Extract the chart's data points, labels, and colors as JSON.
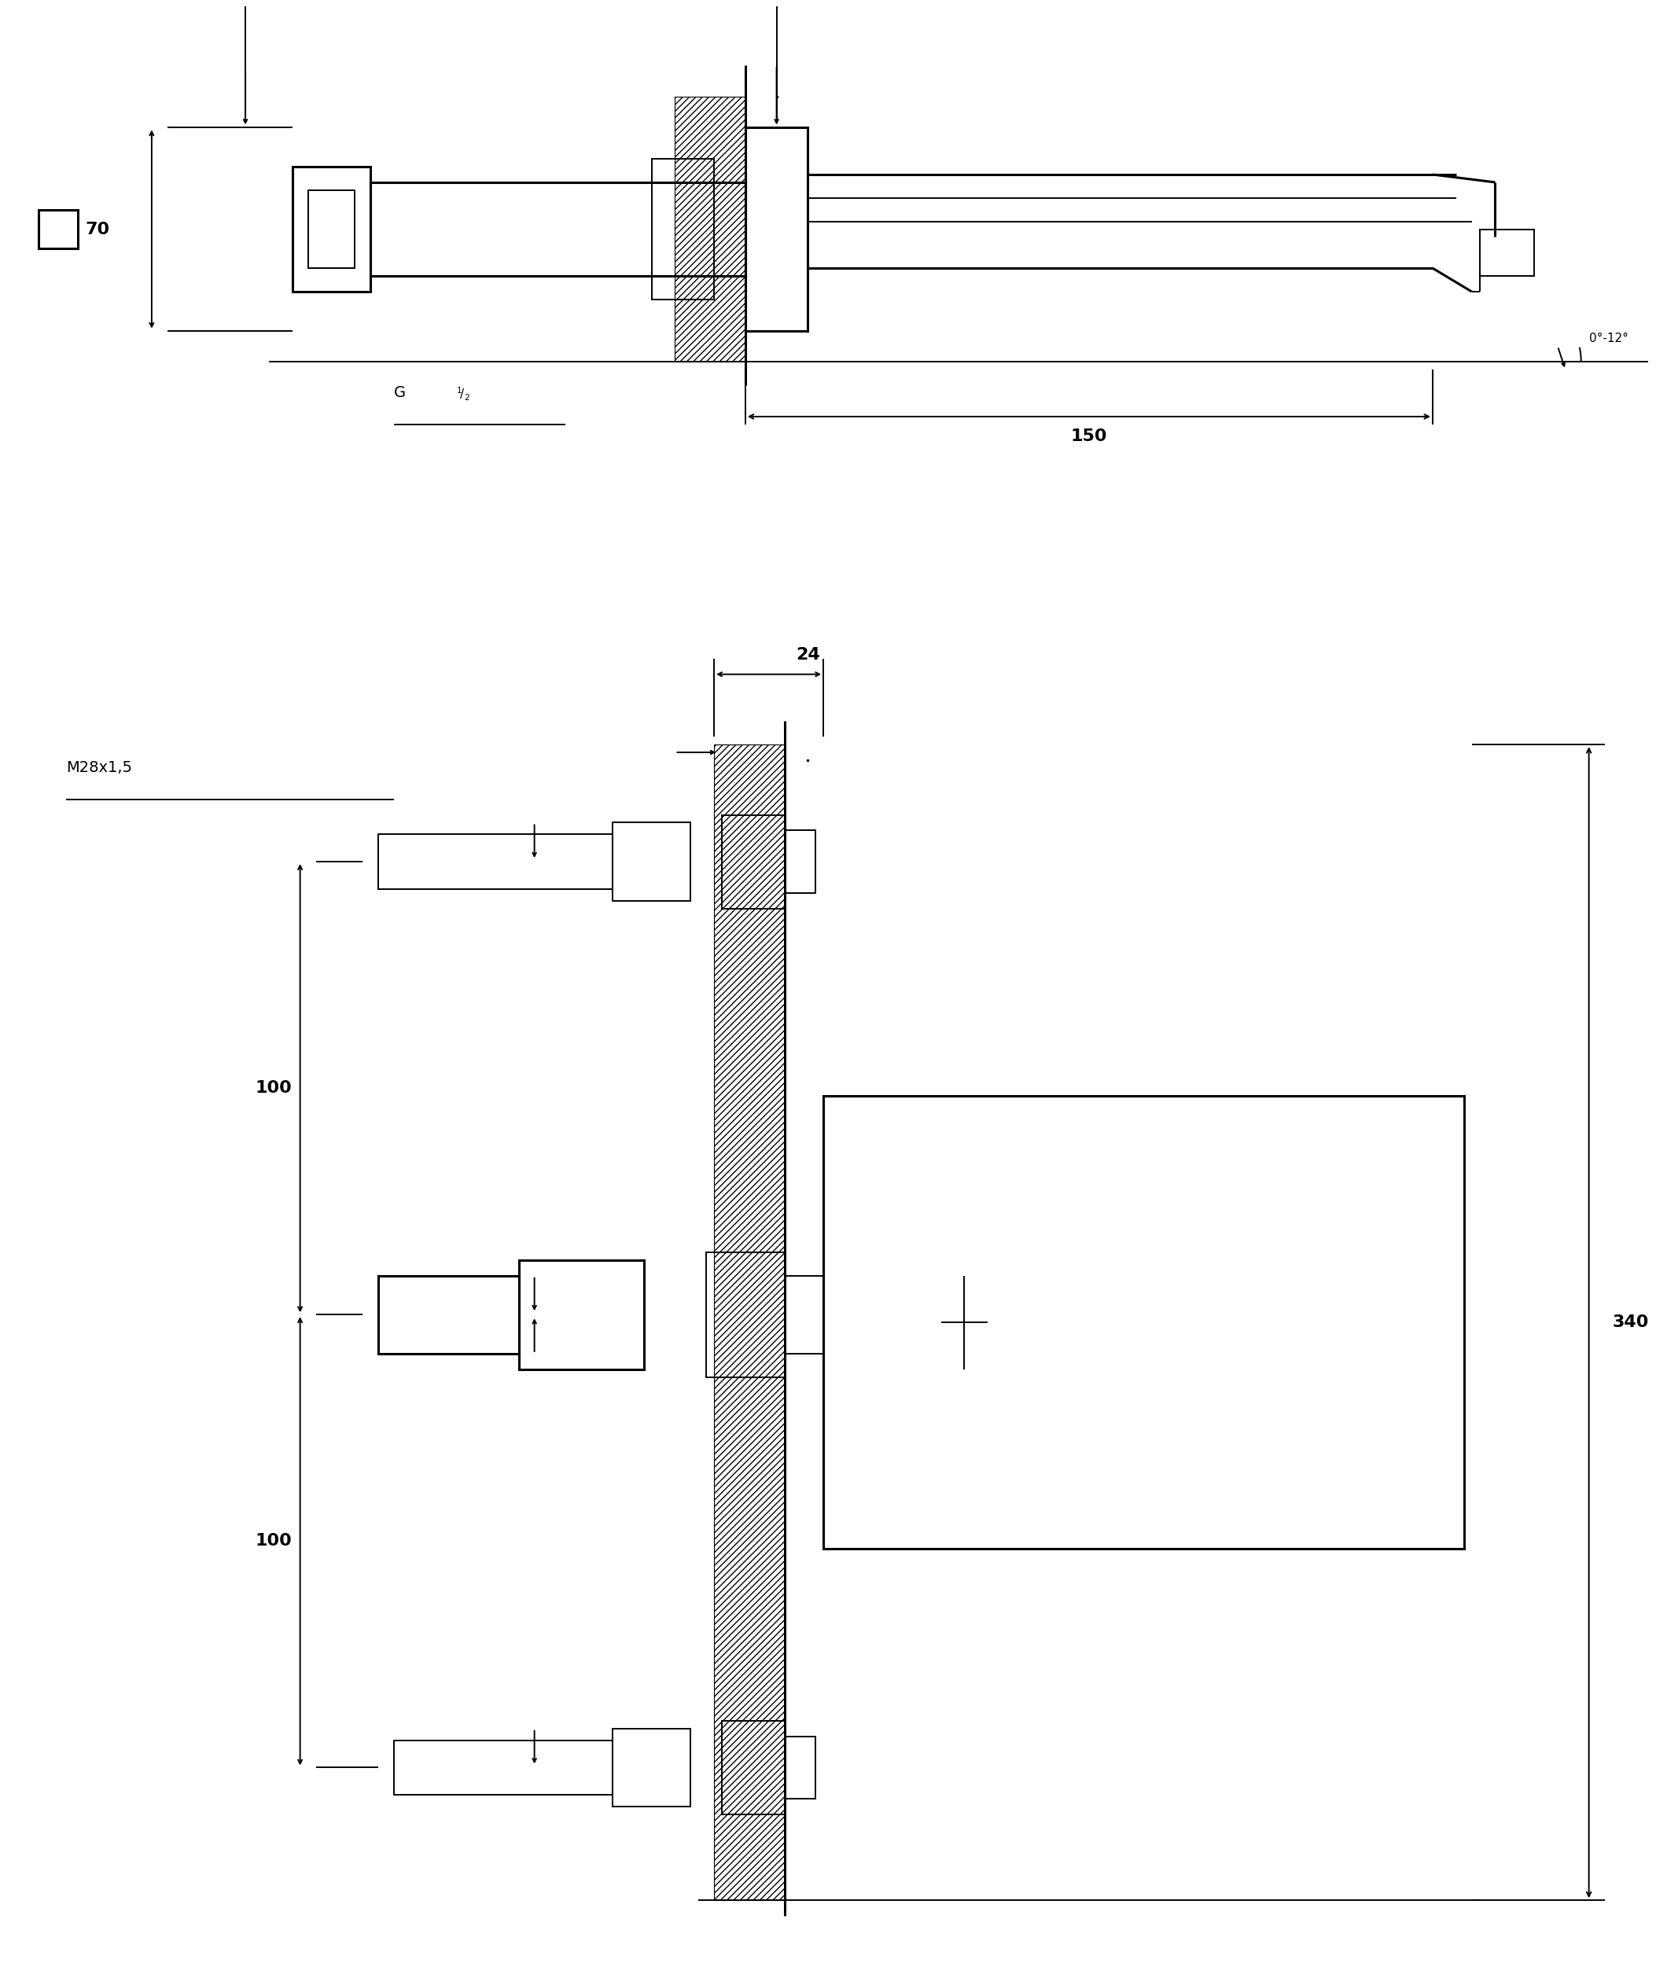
{
  "bg_color": "#ffffff",
  "lw": 1.4,
  "lw2": 2.2,
  "fig_width": 21.06,
  "fig_height": 25.25,
  "top": {
    "label_70": "70",
    "label_G12": "G",
    "label_150": "150",
    "label_angle": "0°-12°"
  },
  "bottom": {
    "label_M28": "M28x1,5",
    "label_24": "24",
    "label_100a": "100",
    "label_100b": "100",
    "label_340": "340"
  }
}
